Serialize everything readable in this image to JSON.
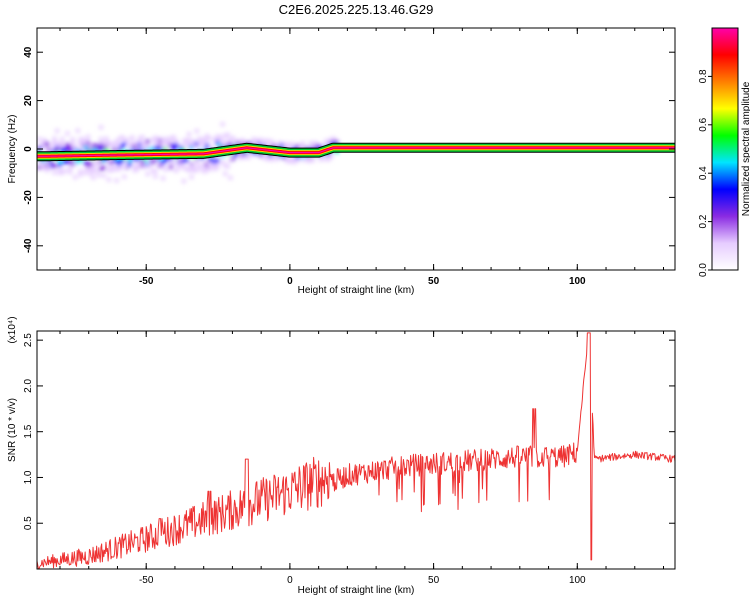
{
  "title": "C2E6.2025.225.13.46.G29",
  "chart_data": [
    {
      "type": "heatmap",
      "xlabel": "Height of straight line (km)",
      "ylabel": "Frequency (Hz)",
      "xlim": [
        -88,
        134
      ],
      "ylim": [
        -50,
        50
      ],
      "xticks": [
        -50,
        0,
        50,
        100
      ],
      "yticks": [
        -40,
        -20,
        0,
        20,
        40
      ],
      "colorbar": {
        "label": "Normalized spectral amplitude",
        "range": [
          0,
          1
        ],
        "ticks": [
          0.0,
          0.2,
          0.4,
          0.6,
          0.8
        ],
        "colors": [
          "#ffffff",
          "#e6ccff",
          "#8a2be2",
          "#0000ff",
          "#00e5ff",
          "#00ff00",
          "#ffff00",
          "#ff7f00",
          "#ff0000",
          "#ff00aa"
        ]
      },
      "band": [
        {
          "x": -85,
          "freq": -3.0
        },
        {
          "x": -60,
          "freq": -2.5
        },
        {
          "x": -30,
          "freq": -2.0
        },
        {
          "x": -15,
          "freq": 0.5
        },
        {
          "x": 0,
          "freq": -1.5
        },
        {
          "x": 10,
          "freq": -1.5
        },
        {
          "x": 15,
          "freq": 0.5
        },
        {
          "x": 134,
          "freq": 0.5
        }
      ]
    },
    {
      "type": "line",
      "xlabel": "Height of straight line (km)",
      "ylabel": "SNR (10 * v/v)",
      "scale_label": "(x10⁴)",
      "xlim": [
        -88,
        134
      ],
      "ylim": [
        0,
        2.6
      ],
      "xticks": [
        -50,
        0,
        50,
        100
      ],
      "yticks": [
        0.5,
        1.0,
        1.5,
        2.0,
        2.5
      ],
      "color": "#ee3333",
      "envelope": [
        {
          "x": -88,
          "y": 0.05
        },
        {
          "x": -70,
          "y": 0.12
        },
        {
          "x": -50,
          "y": 0.3
        },
        {
          "x": -30,
          "y": 0.5
        },
        {
          "x": -15,
          "y": 0.65
        },
        {
          "x": 0,
          "y": 0.8
        },
        {
          "x": 10,
          "y": 0.9
        },
        {
          "x": 20,
          "y": 1.05
        },
        {
          "x": 40,
          "y": 1.15
        },
        {
          "x": 60,
          "y": 1.2
        },
        {
          "x": 80,
          "y": 1.25
        },
        {
          "x": 95,
          "y": 1.25
        },
        {
          "x": 100,
          "y": 1.3
        },
        {
          "x": 104,
          "y": 2.6
        },
        {
          "x": 106,
          "y": 1.2
        },
        {
          "x": 120,
          "y": 1.25
        },
        {
          "x": 134,
          "y": 1.2
        }
      ],
      "peaks": [
        {
          "x": -45,
          "y": 0.55
        },
        {
          "x": -28,
          "y": 0.85
        },
        {
          "x": -15,
          "y": 1.2
        },
        {
          "x": 85,
          "y": 1.75
        },
        {
          "x": 104,
          "y": 2.58
        }
      ]
    }
  ]
}
